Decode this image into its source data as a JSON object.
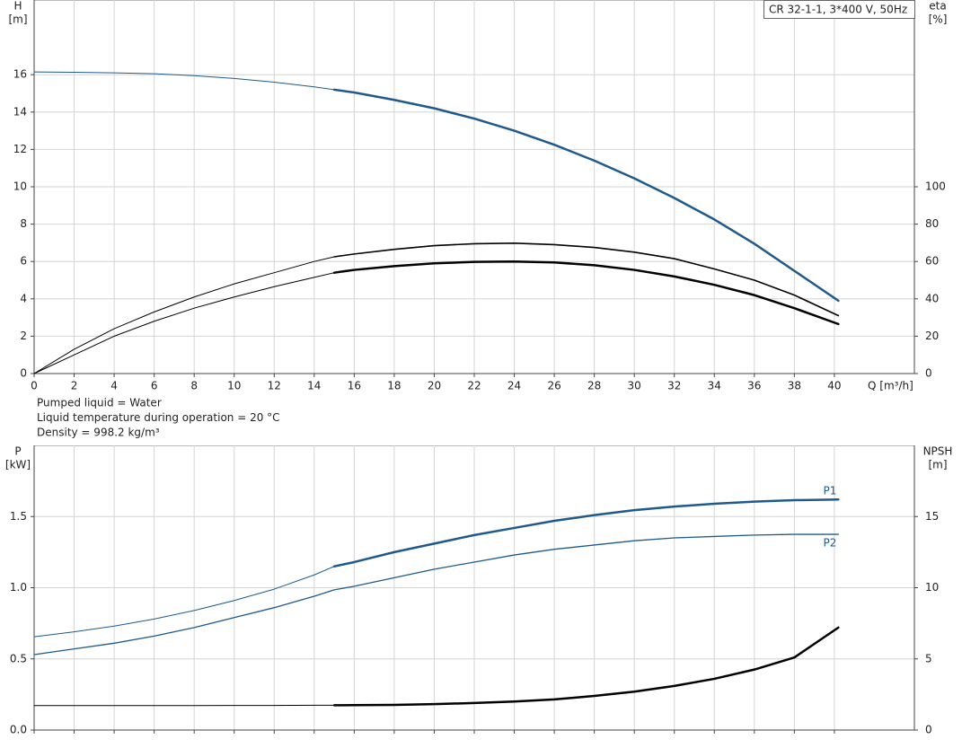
{
  "chart_data": [
    {
      "type": "line",
      "title": "CR 32-1-1, 3*400 V, 50Hz",
      "ylabel": "H",
      "yunit": "[m]",
      "y2label": "eta",
      "y2unit": "[%]",
      "xlabel": "Q [m³/h]",
      "annotations": [
        "Pumped liquid = Water",
        "Liquid temperature during operation = 20 °C",
        "Density = 998.2 kg/m³"
      ],
      "x": [
        0,
        2,
        4,
        6,
        8,
        10,
        12,
        14,
        15,
        16,
        18,
        20,
        22,
        24,
        26,
        28,
        30,
        32,
        34,
        36,
        38,
        40.2
      ],
      "xlim": [
        0,
        44
      ],
      "xticks": [
        0,
        2,
        4,
        6,
        8,
        10,
        12,
        14,
        16,
        18,
        20,
        22,
        24,
        26,
        28,
        30,
        32,
        34,
        36,
        38,
        40
      ],
      "xtick_labels": true,
      "ylim": [
        0,
        20
      ],
      "yticks": [
        0,
        2,
        4,
        6,
        8,
        10,
        12,
        14,
        16
      ],
      "y2lim": [
        0,
        200
      ],
      "y2ticks": [
        0,
        20,
        40,
        60,
        80,
        100
      ],
      "grid": true,
      "series": [
        {
          "color": "#1f5a8c",
          "width": 1,
          "values": [
            16.15,
            16.13,
            16.1,
            16.05,
            15.95,
            15.8,
            15.6,
            15.35,
            15.2,
            null,
            null,
            null,
            null,
            null,
            null,
            null,
            null,
            null,
            null,
            null,
            null,
            null
          ]
        },
        {
          "color": "#1f5a8c",
          "width": 2.5,
          "values": [
            null,
            null,
            null,
            null,
            null,
            null,
            null,
            null,
            15.2,
            15.05,
            14.65,
            14.2,
            13.65,
            13.0,
            12.25,
            11.4,
            10.45,
            9.4,
            8.25,
            6.95,
            5.5,
            3.9
          ]
        },
        {
          "color": "#000000",
          "width": 1,
          "axis": "y2",
          "values": [
            0,
            13,
            24,
            33,
            41,
            48,
            54,
            60,
            62.5,
            null,
            null,
            null,
            null,
            null,
            null,
            null,
            null,
            null,
            null,
            null,
            null,
            null
          ]
        },
        {
          "color": "#000000",
          "width": 1.6,
          "axis": "y2",
          "values": [
            null,
            null,
            null,
            null,
            null,
            null,
            null,
            null,
            62.5,
            64,
            66.5,
            68.5,
            69.5,
            69.8,
            69,
            67.5,
            65,
            61.5,
            56,
            50,
            42,
            31
          ]
        },
        {
          "color": "#000000",
          "width": 1,
          "axis": "y2",
          "values": [
            0,
            10,
            20,
            28,
            35,
            41,
            46.5,
            51.5,
            54,
            null,
            null,
            null,
            null,
            null,
            null,
            null,
            null,
            null,
            null,
            null,
            null,
            null
          ]
        },
        {
          "color": "#000000",
          "width": 2.5,
          "axis": "y2",
          "values": [
            null,
            null,
            null,
            null,
            null,
            null,
            null,
            null,
            54,
            55.5,
            57.5,
            59,
            59.8,
            60,
            59.5,
            58,
            55.5,
            52,
            47.5,
            42,
            35,
            26.5
          ]
        }
      ]
    },
    {
      "type": "line",
      "ylabel": "P",
      "yunit": "[kW]",
      "y2label": "NPSH",
      "y2unit": "[m]",
      "x": [
        0,
        2,
        4,
        6,
        8,
        10,
        12,
        14,
        15,
        16,
        18,
        20,
        22,
        24,
        26,
        28,
        30,
        32,
        34,
        36,
        38,
        40.2
      ],
      "xlim": [
        0,
        44
      ],
      "xticks": [
        0,
        2,
        4,
        6,
        8,
        10,
        12,
        14,
        16,
        18,
        20,
        22,
        24,
        26,
        28,
        30,
        32,
        34,
        36,
        38,
        40
      ],
      "xtick_labels": false,
      "ylim": [
        0,
        2
      ],
      "yticks": [
        {
          "value": 0,
          "label": "0.0"
        },
        {
          "value": 0.5,
          "label": "0.5"
        },
        {
          "value": 1,
          "label": "1.0"
        },
        {
          "value": 1.5,
          "label": "1.5"
        }
      ],
      "y2lim": [
        0,
        20
      ],
      "y2ticks": [
        0,
        5,
        10,
        15
      ],
      "grid": true,
      "series": [
        {
          "color": "#1f5a8c",
          "width": 1,
          "values": [
            0.655,
            0.69,
            0.73,
            0.78,
            0.84,
            0.91,
            0.99,
            1.09,
            1.15,
            null,
            null,
            null,
            null,
            null,
            null,
            null,
            null,
            null,
            null,
            null,
            null,
            null
          ]
        },
        {
          "name": "P1",
          "color": "#1f5a8c",
          "width": 2.5,
          "values": [
            null,
            null,
            null,
            null,
            null,
            null,
            null,
            null,
            1.15,
            1.18,
            1.25,
            1.31,
            1.37,
            1.42,
            1.47,
            1.51,
            1.545,
            1.57,
            1.59,
            1.605,
            1.615,
            1.62
          ]
        },
        {
          "name": "P2",
          "color": "#1f5a8c",
          "width": 1.3,
          "values": [
            0.53,
            0.57,
            0.61,
            0.66,
            0.72,
            0.79,
            0.86,
            0.94,
            0.985,
            1.01,
            1.07,
            1.13,
            1.18,
            1.23,
            1.27,
            1.3,
            1.33,
            1.35,
            1.36,
            1.37,
            1.375,
            1.375
          ]
        },
        {
          "color": "#000000",
          "width": 1,
          "axis": "y2",
          "values": [
            1.72,
            1.72,
            1.72,
            1.72,
            1.72,
            1.73,
            1.73,
            1.74,
            1.74,
            null,
            null,
            null,
            null,
            null,
            null,
            null,
            null,
            null,
            null,
            null,
            null,
            null
          ]
        },
        {
          "color": "#000000",
          "width": 2.5,
          "axis": "y2",
          "values": [
            null,
            null,
            null,
            null,
            null,
            null,
            null,
            null,
            1.74,
            1.75,
            1.77,
            1.82,
            1.9,
            2.0,
            2.15,
            2.4,
            2.7,
            3.1,
            3.6,
            4.25,
            5.1,
            7.2
          ]
        }
      ]
    }
  ]
}
